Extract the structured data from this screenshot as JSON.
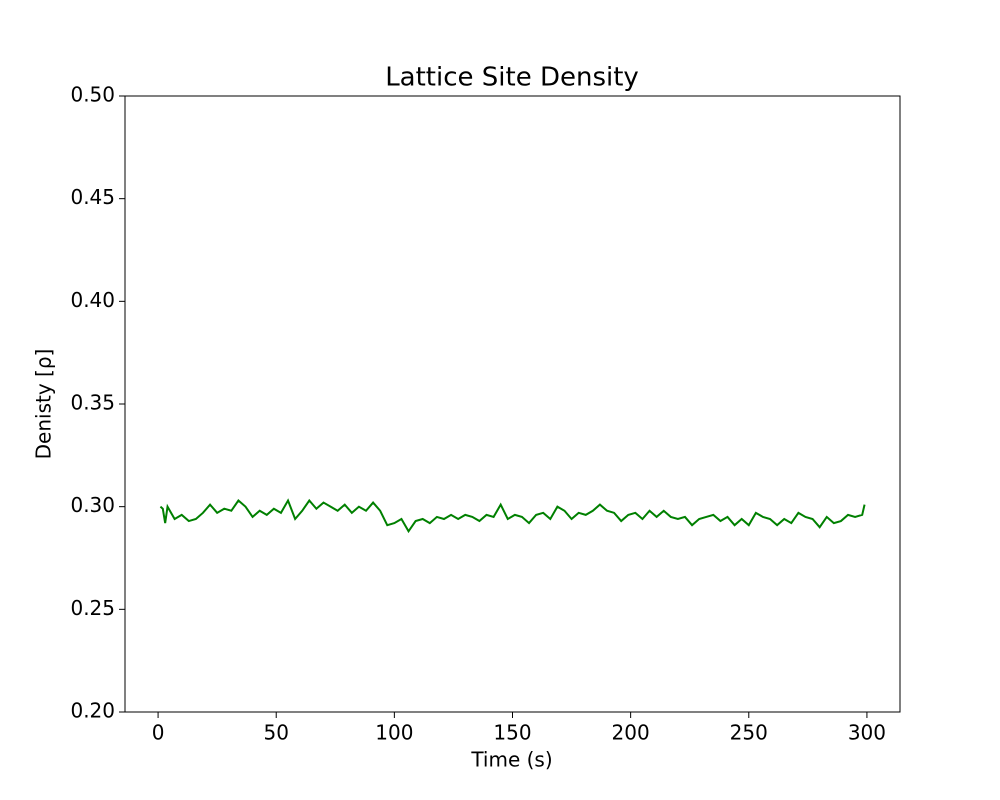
{
  "chart_data": {
    "type": "line",
    "title": "Lattice Site Density",
    "x_label": "Time (s)",
    "y_label": "Denisty [ρ]",
    "x": [
      1,
      2,
      3,
      4,
      7,
      10,
      13,
      16,
      19,
      22,
      25,
      28,
      31,
      34,
      37,
      40,
      43,
      46,
      49,
      52,
      55,
      58,
      61,
      64,
      67,
      70,
      73,
      76,
      79,
      82,
      85,
      88,
      91,
      94,
      97,
      100,
      103,
      106,
      109,
      112,
      115,
      118,
      121,
      124,
      127,
      130,
      133,
      136,
      139,
      142,
      145,
      148,
      151,
      154,
      157,
      160,
      163,
      166,
      169,
      172,
      175,
      178,
      181,
      184,
      187,
      190,
      193,
      196,
      199,
      202,
      205,
      208,
      211,
      214,
      217,
      220,
      223,
      226,
      229,
      232,
      235,
      238,
      241,
      244,
      247,
      250,
      253,
      256,
      259,
      262,
      265,
      268,
      271,
      274,
      277,
      280,
      283,
      286,
      289,
      292,
      295,
      298,
      299
    ],
    "series": [
      {
        "name": "Density",
        "color": "#008000",
        "values": [
          0.3,
          0.299,
          0.292,
          0.3,
          0.294,
          0.296,
          0.293,
          0.294,
          0.297,
          0.301,
          0.297,
          0.299,
          0.298,
          0.303,
          0.3,
          0.295,
          0.298,
          0.296,
          0.299,
          0.297,
          0.303,
          0.294,
          0.298,
          0.303,
          0.299,
          0.302,
          0.3,
          0.298,
          0.301,
          0.297,
          0.3,
          0.298,
          0.302,
          0.298,
          0.291,
          0.292,
          0.294,
          0.288,
          0.293,
          0.294,
          0.292,
          0.295,
          0.294,
          0.296,
          0.294,
          0.296,
          0.295,
          0.293,
          0.296,
          0.295,
          0.301,
          0.294,
          0.296,
          0.295,
          0.292,
          0.296,
          0.297,
          0.294,
          0.3,
          0.298,
          0.294,
          0.297,
          0.296,
          0.298,
          0.301,
          0.298,
          0.297,
          0.293,
          0.296,
          0.297,
          0.294,
          0.298,
          0.295,
          0.298,
          0.295,
          0.294,
          0.295,
          0.291,
          0.294,
          0.295,
          0.296,
          0.293,
          0.295,
          0.291,
          0.294,
          0.291,
          0.297,
          0.295,
          0.294,
          0.291,
          0.294,
          0.292,
          0.297,
          0.295,
          0.294,
          0.29,
          0.295,
          0.292,
          0.293,
          0.296,
          0.295,
          0.296,
          0.301
        ]
      }
    ],
    "xlim": [
      -14,
      314
    ],
    "xticks": [
      0,
      50,
      100,
      150,
      200,
      250,
      300
    ],
    "ylim": [
      0.2,
      0.5
    ],
    "yticks": [
      {
        "value": 0.2,
        "label": "0.20"
      },
      0.25,
      {
        "value": 0.3,
        "label": "0.30"
      },
      0.35,
      {
        "value": 0.4,
        "label": "0.40"
      },
      0.45,
      {
        "value": 0.5,
        "label": "0.50"
      }
    ],
    "grid": false
  }
}
